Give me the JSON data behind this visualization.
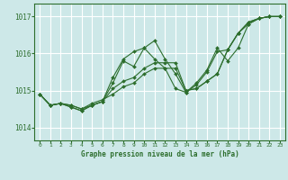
{
  "xlabel": "Graphe pression niveau de la mer (hPa)",
  "background_color": "#cde8e8",
  "grid_color": "#ffffff",
  "line_color": "#2d6e2d",
  "marker_color": "#2d6e2d",
  "x_ticks": [
    0,
    1,
    2,
    3,
    4,
    5,
    6,
    7,
    8,
    9,
    10,
    11,
    12,
    13,
    14,
    15,
    16,
    17,
    18,
    19,
    20,
    21,
    22,
    23
  ],
  "y_ticks": [
    1014,
    1015,
    1016,
    1017
  ],
  "ylim": [
    1013.65,
    1017.35
  ],
  "xlim": [
    -0.5,
    23.5
  ],
  "series": [
    [
      1014.9,
      1014.6,
      1014.65,
      1014.6,
      1014.5,
      1014.6,
      1014.7,
      1015.05,
      1015.25,
      1015.35,
      1015.6,
      1015.75,
      1015.75,
      1015.75,
      1015.0,
      1015.05,
      1015.25,
      1015.45,
      1016.1,
      1016.55,
      1016.85,
      1016.95,
      1017.0,
      1017.0
    ],
    [
      1014.9,
      1014.6,
      1014.65,
      1014.55,
      1014.45,
      1014.6,
      1014.7,
      1015.35,
      1015.85,
      1016.05,
      1016.15,
      1015.85,
      1015.6,
      1015.05,
      1014.95,
      1015.2,
      1015.55,
      1016.15,
      1015.8,
      1016.15,
      1016.8,
      1016.95,
      1017.0,
      1017.0
    ],
    [
      1014.9,
      1014.6,
      1014.65,
      1014.55,
      1014.45,
      1014.6,
      1014.7,
      1015.2,
      1015.8,
      1015.65,
      1016.15,
      1016.35,
      1015.85,
      1015.45,
      1014.95,
      1015.15,
      1015.5,
      1016.05,
      1016.1,
      1016.55,
      1016.8,
      1016.95,
      1017.0,
      1017.0
    ],
    [
      1014.9,
      1014.6,
      1014.65,
      1014.6,
      1014.5,
      1014.65,
      1014.75,
      1014.9,
      1015.1,
      1015.2,
      1015.45,
      1015.6,
      1015.6,
      1015.6,
      1015.0,
      1015.05,
      1015.25,
      1015.45,
      1016.1,
      1016.55,
      1016.85,
      1016.95,
      1017.0,
      1017.0
    ]
  ]
}
